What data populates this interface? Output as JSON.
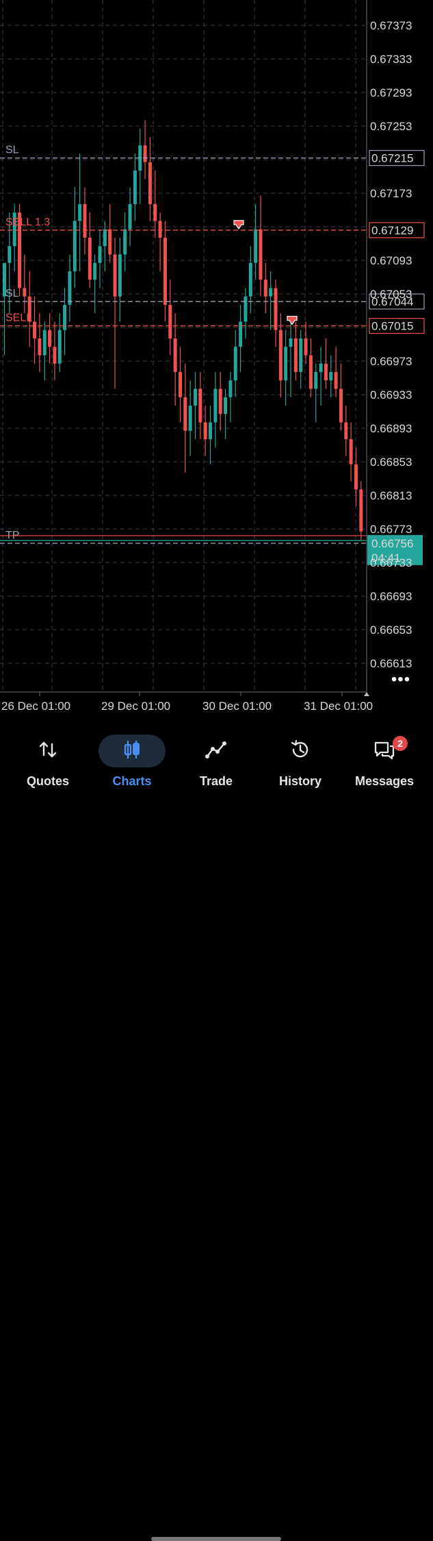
{
  "chart": {
    "price_ticks": [
      "0.67373",
      "0.67333",
      "0.67293",
      "0.67253",
      "0.67173",
      "0.67093",
      "0.67053",
      "0.66973",
      "0.66933",
      "0.66893",
      "0.66853",
      "0.66813",
      "0.66773",
      "0.66733",
      "0.66693",
      "0.66653",
      "0.66613"
    ],
    "date_labels": [
      "26 Dec 01:00",
      "29 Dec 01:00",
      "30 Dec 01:00",
      "31 Dec 01:00"
    ],
    "current_price": "0.66756",
    "countdown": "04:41",
    "bull_color": "#26a69a",
    "bear_color": "#ef5350",
    "levels": [
      {
        "tag": "SL",
        "price": 0.67215,
        "label": "0.67215",
        "color": "#9aa3b5"
      },
      {
        "tag": "SELL 1.3",
        "price": 0.67129,
        "label": "0.67129",
        "color": "#ef5350"
      },
      {
        "tag": "SL",
        "price": 0.67044,
        "label": "0.67044",
        "color": "#9aa3b5"
      },
      {
        "tag": "SELL",
        "price": 0.67015,
        "label": "0.67015",
        "color": "#ef5350"
      },
      {
        "tag": "TP",
        "price": 0.66756,
        "label": "",
        "color": "#9aa3b5"
      }
    ]
  },
  "nav": {
    "quotes": "Quotes",
    "charts": "Charts",
    "trade": "Trade",
    "history": "History",
    "messages": "Messages",
    "messages_badge": "2"
  },
  "menu": {
    "more": "•••"
  },
  "icons": [
    "arrows-updown-icon",
    "candles-icon",
    "trade-line-icon",
    "history-clock-icon",
    "messages-chat-icon"
  ]
}
